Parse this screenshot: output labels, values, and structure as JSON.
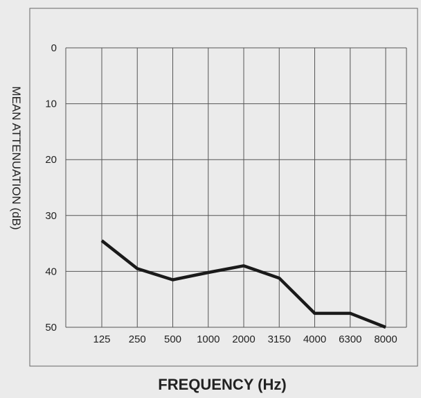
{
  "chart_data": {
    "type": "line",
    "title": "",
    "xlabel": "FREQUENCY (Hz)",
    "ylabel": "MEAN ATTENUATION (dB)",
    "categories": [
      "125",
      "250",
      "500",
      "1000",
      "2000",
      "3150",
      "4000",
      "6300",
      "8000"
    ],
    "yticks": [
      "0",
      "10",
      "20",
      "30",
      "40",
      "50"
    ],
    "ylim": [
      0,
      50
    ],
    "y_axis_inverted": true,
    "grid": true,
    "legend": "none",
    "series": [
      {
        "values": [
          34.5,
          39.5,
          41.5,
          40.2,
          39.0,
          41.2,
          47.5,
          47.5,
          50.0
        ]
      }
    ],
    "colors": {
      "background": "#ebebeb",
      "grid": "#555555",
      "line": "#1a1a1a",
      "text": "#222222"
    }
  }
}
